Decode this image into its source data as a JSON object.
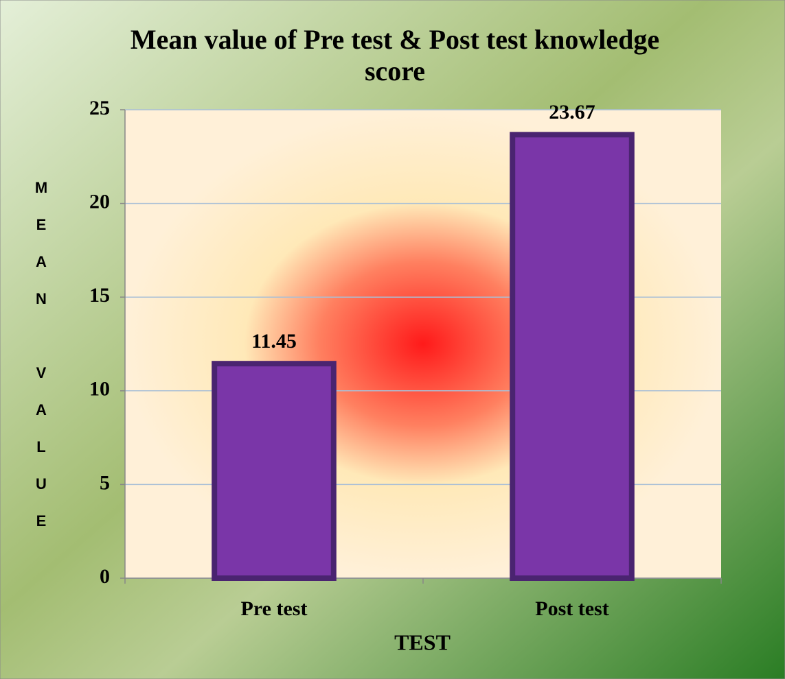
{
  "chart_data": {
    "type": "bar",
    "title": "Mean value of Pre test & Post test knowledge score",
    "x_label": "TEST",
    "y_label": "MEAN VALUE",
    "categories": [
      "Pre test",
      "Post test"
    ],
    "values": [
      11.45,
      23.67
    ],
    "color": "#7a36a8",
    "ylim": [
      0,
      25
    ],
    "yticks": [
      0,
      5,
      10,
      15,
      20,
      25
    ],
    "grid": true
  }
}
